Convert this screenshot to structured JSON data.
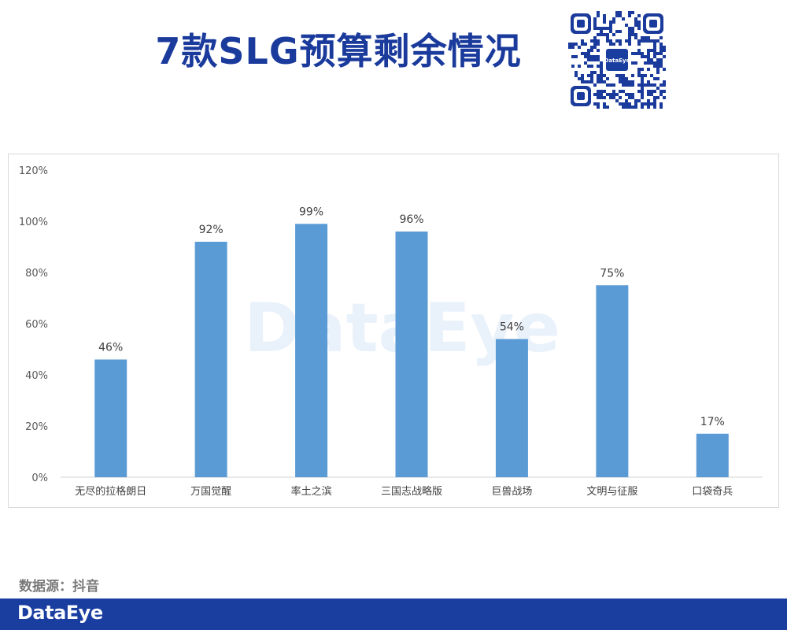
{
  "title": "7款SLG预算剩余情况",
  "qr": {
    "center_logo": "DataEye"
  },
  "watermark": "DataEye",
  "source_note": "数据源：抖音",
  "footer": {
    "logo": "DataEye",
    "bar_color": "#1a3ea0"
  },
  "colors": {
    "title": "#1a3a9c",
    "bar": "#5b9bd5"
  },
  "chart_data": {
    "type": "bar",
    "title": "",
    "xlabel": "",
    "ylabel": "",
    "categories": [
      "无尽的拉格朗日",
      "万国觉醒",
      "率土之滨",
      "三国志战略版",
      "巨兽战场",
      "文明与征服",
      "口袋奇兵"
    ],
    "values": [
      46,
      92,
      99,
      96,
      54,
      75,
      17
    ],
    "data_labels": [
      "46%",
      "92%",
      "99%",
      "96%",
      "54%",
      "75%",
      "17%"
    ],
    "ylim": [
      0,
      120
    ],
    "yticks": [
      0,
      20,
      40,
      60,
      80,
      100,
      120
    ],
    "ytick_labels": [
      "0%",
      "20%",
      "40%",
      "60%",
      "80%",
      "100%",
      "120%"
    ],
    "grid": false,
    "legend": "none"
  }
}
